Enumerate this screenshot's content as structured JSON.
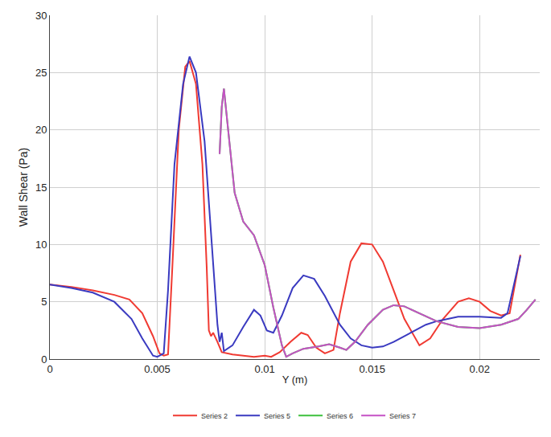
{
  "chart_data": {
    "type": "line",
    "x_label": "Y (m)",
    "y_label": "Wall Shear (Pa)",
    "xlim": [
      0,
      0.0228
    ],
    "xticks": [
      0,
      0.005,
      0.01,
      0.015,
      0.02
    ],
    "ylim": [
      0,
      30
    ],
    "yticks": [
      0,
      5,
      10,
      15,
      20,
      25,
      30
    ],
    "grid": true,
    "legend": "bottom",
    "line_style": "solid",
    "series": [
      {
        "name": "Series 2",
        "color": "#f03a32",
        "x": [
          0,
          0.001,
          0.002,
          0.003,
          0.0037,
          0.0043,
          0.0048,
          0.0051,
          0.0053,
          0.0055,
          0.0057,
          0.006,
          0.0063,
          0.0065,
          0.0068,
          0.0071,
          0.0073,
          0.0074,
          0.0075,
          0.0076,
          0.0078,
          0.008,
          0.0085,
          0.009,
          0.0095,
          0.01,
          0.0103,
          0.0107,
          0.0112,
          0.0117,
          0.012,
          0.0124,
          0.0128,
          0.0132,
          0.0135,
          0.014,
          0.0145,
          0.015,
          0.0155,
          0.016,
          0.0165,
          0.0172,
          0.0177,
          0.0183,
          0.019,
          0.0195,
          0.02,
          0.0205,
          0.021,
          0.0214,
          0.0219
        ],
        "values": [
          6.5,
          6.3,
          6.0,
          5.6,
          5.2,
          4.0,
          2.0,
          0.5,
          0.3,
          0.4,
          8,
          20,
          25.5,
          26,
          24,
          17,
          8,
          2.5,
          2.0,
          2.3,
          1.5,
          0.6,
          0.4,
          0.3,
          0.2,
          0.3,
          0.2,
          0.6,
          1.5,
          2.3,
          2.1,
          1.0,
          0.5,
          0.8,
          4,
          8.5,
          10.1,
          10.0,
          8.5,
          6,
          3.5,
          1.2,
          1.8,
          3.5,
          5.0,
          5.3,
          5.0,
          4.2,
          3.8,
          4.0,
          9.1
        ]
      },
      {
        "name": "Series 5",
        "color": "#3a3ac0",
        "x": [
          0,
          0.001,
          0.002,
          0.003,
          0.0038,
          0.0043,
          0.0048,
          0.005,
          0.0053,
          0.0055,
          0.0058,
          0.0062,
          0.0065,
          0.0068,
          0.0072,
          0.0075,
          0.0078,
          0.0079,
          0.008,
          0.0081,
          0.0085,
          0.009,
          0.0095,
          0.0098,
          0.0101,
          0.0104,
          0.0108,
          0.0113,
          0.0118,
          0.0123,
          0.0128,
          0.0135,
          0.014,
          0.0145,
          0.015,
          0.0155,
          0.016,
          0.0168,
          0.0175,
          0.018,
          0.019,
          0.02,
          0.021,
          0.0213,
          0.0219
        ],
        "values": [
          6.5,
          6.2,
          5.8,
          5.0,
          3.5,
          1.8,
          0.3,
          0.2,
          0.5,
          6,
          17,
          24,
          26.4,
          25,
          19,
          11,
          3,
          1.5,
          2.3,
          0.7,
          1.2,
          2.8,
          4.3,
          3.8,
          2.5,
          2.3,
          3.8,
          6.2,
          7.3,
          7.0,
          5.5,
          3.0,
          1.8,
          1.2,
          1.0,
          1.1,
          1.5,
          2.3,
          3.0,
          3.3,
          3.7,
          3.7,
          3.6,
          4.0,
          9.0
        ]
      },
      {
        "name": "Series 6",
        "color": "#3cc03c",
        "x": [
          0.0079,
          0.008,
          0.0081,
          0.0083,
          0.0086,
          0.009,
          0.0095,
          0.01,
          0.0104,
          0.0108,
          0.011,
          0.0113,
          0.0118,
          0.0125,
          0.013,
          0.0135,
          0.0138,
          0.0142,
          0.0148,
          0.0155,
          0.016,
          0.0165,
          0.0172,
          0.018,
          0.019,
          0.02,
          0.021,
          0.0218,
          0.0222,
          0.0226
        ],
        "values": [
          17.9,
          22,
          23.6,
          20,
          14.5,
          12,
          10.8,
          8.2,
          4.5,
          1.2,
          0.2,
          0.5,
          0.9,
          1.1,
          1.3,
          1.0,
          0.8,
          1.5,
          3.0,
          4.3,
          4.7,
          4.6,
          4.0,
          3.3,
          2.8,
          2.7,
          3.0,
          3.5,
          4.3,
          5.2
        ]
      },
      {
        "name": "Series 7",
        "color": "#c552c5",
        "x": [
          0.0079,
          0.008,
          0.0081,
          0.0083,
          0.0086,
          0.009,
          0.0095,
          0.01,
          0.0104,
          0.0108,
          0.011,
          0.0113,
          0.0118,
          0.0125,
          0.013,
          0.0135,
          0.0138,
          0.0142,
          0.0148,
          0.0155,
          0.016,
          0.0165,
          0.0172,
          0.018,
          0.019,
          0.02,
          0.021,
          0.0218,
          0.0222,
          0.0226
        ],
        "values": [
          17.9,
          22,
          23.6,
          20,
          14.5,
          12,
          10.8,
          8.2,
          4.5,
          1.2,
          0.2,
          0.5,
          0.9,
          1.1,
          1.3,
          1.0,
          0.8,
          1.5,
          3.0,
          4.3,
          4.7,
          4.6,
          4.0,
          3.3,
          2.8,
          2.7,
          3.0,
          3.5,
          4.3,
          5.2
        ]
      }
    ]
  }
}
